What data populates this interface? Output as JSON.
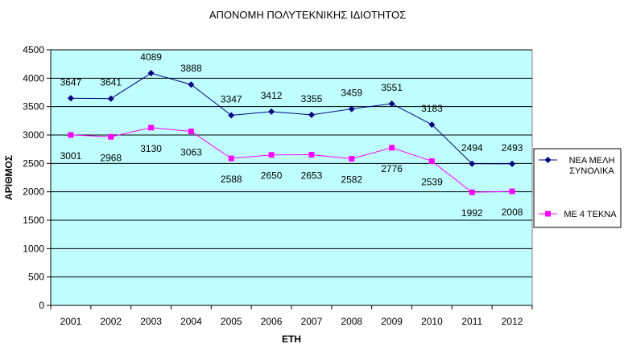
{
  "chart_data": {
    "type": "line",
    "title": "ΑΠΟΝΟΜΗ ΠΟΛΥΤΕΚΝΙΚΗΣ ΙΔΙΟΤΗΤΟΣ",
    "xlabel": "ΕΤΗ",
    "ylabel": "ΑΡΙΘΜΟΣ",
    "ylim": [
      0,
      4500
    ],
    "yticks": [
      0,
      500,
      1000,
      1500,
      2000,
      2500,
      3000,
      3500,
      4000,
      4500
    ],
    "grid": true,
    "legend_position": "right",
    "categories": [
      "2001",
      "2002",
      "2003",
      "2004",
      "2005",
      "2006",
      "2007",
      "2008",
      "2009",
      "2010",
      "2011",
      "2012"
    ],
    "series": [
      {
        "name": "ΝΕΑ ΜΕΛΗ ΣΥΝΟΛΙΚΑ",
        "legend_lines": [
          "ΝΕΑ ΜΕΛΗ",
          "ΣΥΝΟΛΙΚΑ"
        ],
        "color": "#000080",
        "marker": "diamond",
        "values": [
          3647,
          3641,
          4089,
          3888,
          3347,
          3412,
          3355,
          3459,
          3551,
          3183,
          2494,
          2493
        ]
      },
      {
        "name": "ΜΕ 4 ΤΕΚΝΑ",
        "legend_lines": [
          "ΜΕ 4 ΤΕΚΝΑ"
        ],
        "color": "#ff00ff",
        "marker": "square",
        "values": [
          3001,
          2968,
          3130,
          3063,
          2588,
          2650,
          2653,
          2582,
          2776,
          2539,
          1992,
          2008
        ]
      }
    ],
    "plot_background": "#c0ffff"
  }
}
